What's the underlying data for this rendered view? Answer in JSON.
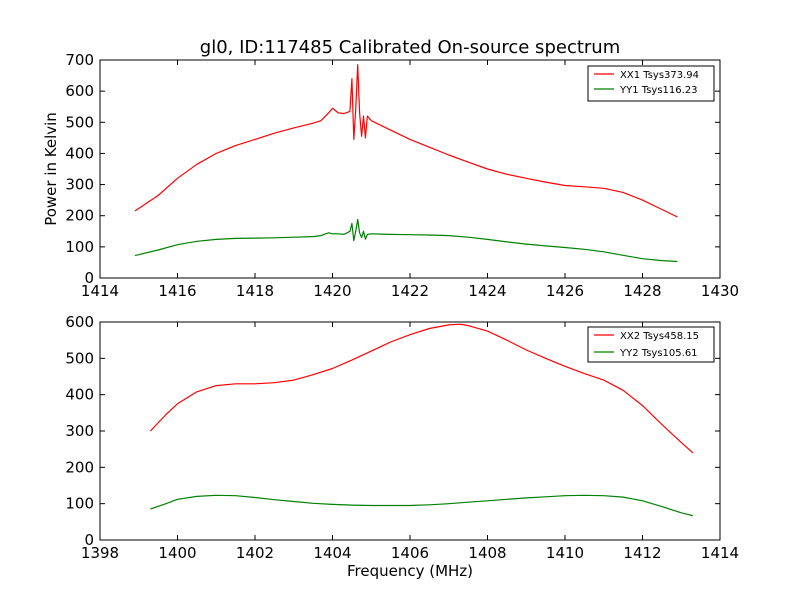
{
  "title": "gl0, ID:117485 Calibrated On-source spectrum",
  "colors": {
    "xx": "#ff0000",
    "yy": "#008000"
  },
  "chart_data": [
    {
      "type": "line",
      "xlabel": "",
      "ylabel": "Power in Kelvin",
      "xlim": [
        1414,
        1430
      ],
      "ylim": [
        0,
        700
      ],
      "xticks": [
        "1414",
        "1416",
        "1418",
        "1420",
        "1422",
        "1424",
        "1426",
        "1428",
        "1430"
      ],
      "yticks": [
        "0",
        "100",
        "200",
        "300",
        "400",
        "500",
        "600",
        "700"
      ],
      "legend_position": "top-right",
      "series": [
        {
          "name": "XX1 Tsys373.94",
          "color": "#ff0000",
          "x": [
            1414.9,
            1415.5,
            1416.0,
            1416.5,
            1417.0,
            1417.5,
            1418.0,
            1418.5,
            1419.0,
            1419.5,
            1419.7,
            1419.9,
            1420.0,
            1420.15,
            1420.3,
            1420.45,
            1420.5,
            1420.55,
            1420.6,
            1420.65,
            1420.7,
            1420.75,
            1420.8,
            1420.85,
            1420.9,
            1421.0,
            1421.5,
            1422.0,
            1422.5,
            1423.0,
            1423.5,
            1424.0,
            1424.5,
            1425.0,
            1425.5,
            1426.0,
            1426.5,
            1427.0,
            1427.5,
            1428.0,
            1428.5,
            1428.9
          ],
          "y": [
            215,
            265,
            320,
            365,
            400,
            425,
            445,
            465,
            482,
            497,
            505,
            530,
            545,
            530,
            528,
            535,
            640,
            445,
            540,
            685,
            530,
            455,
            520,
            450,
            520,
            505,
            475,
            445,
            420,
            395,
            372,
            350,
            333,
            320,
            308,
            297,
            293,
            288,
            275,
            250,
            220,
            196
          ]
        },
        {
          "name": "YY1 Tsys116.23",
          "color": "#008000",
          "x": [
            1414.9,
            1415.5,
            1416.0,
            1416.5,
            1417.0,
            1417.5,
            1418.0,
            1418.5,
            1419.0,
            1419.5,
            1419.7,
            1419.9,
            1420.0,
            1420.15,
            1420.3,
            1420.45,
            1420.5,
            1420.55,
            1420.6,
            1420.65,
            1420.7,
            1420.75,
            1420.8,
            1420.85,
            1420.9,
            1421.0,
            1421.5,
            1422.0,
            1422.5,
            1423.0,
            1423.5,
            1424.0,
            1424.5,
            1425.0,
            1425.5,
            1426.0,
            1426.5,
            1427.0,
            1427.5,
            1428.0,
            1428.5,
            1428.9
          ],
          "y": [
            72,
            90,
            107,
            118,
            124,
            127,
            128,
            129,
            131,
            133,
            136,
            145,
            142,
            142,
            140,
            150,
            175,
            120,
            150,
            188,
            145,
            130,
            150,
            125,
            140,
            142,
            140,
            139,
            138,
            136,
            131,
            124,
            116,
            109,
            103,
            98,
            92,
            84,
            73,
            62,
            56,
            53
          ]
        }
      ]
    },
    {
      "type": "line",
      "xlabel": "Frequency (MHz)",
      "ylabel": "",
      "xlim": [
        1398,
        1414
      ],
      "ylim": [
        0,
        600
      ],
      "xticks": [
        "1398",
        "1400",
        "1402",
        "1404",
        "1406",
        "1408",
        "1410",
        "1412",
        "1414"
      ],
      "yticks": [
        "0",
        "100",
        "200",
        "300",
        "400",
        "500",
        "600"
      ],
      "legend_position": "top-right",
      "series": [
        {
          "name": "XX2 Tsys458.15",
          "color": "#ff0000",
          "x": [
            1399.3,
            1399.7,
            1400.0,
            1400.5,
            1401.0,
            1401.5,
            1402.0,
            1402.5,
            1403.0,
            1403.5,
            1404.0,
            1404.5,
            1405.0,
            1405.5,
            1406.0,
            1406.5,
            1407.0,
            1407.3,
            1407.5,
            1408.0,
            1408.5,
            1409.0,
            1409.5,
            1410.0,
            1410.5,
            1411.0,
            1411.5,
            1412.0,
            1412.5,
            1413.0,
            1413.3
          ],
          "y": [
            300,
            345,
            375,
            408,
            425,
            430,
            430,
            433,
            440,
            455,
            472,
            495,
            520,
            545,
            565,
            582,
            592,
            594,
            590,
            575,
            550,
            523,
            500,
            478,
            458,
            440,
            412,
            370,
            318,
            268,
            240
          ]
        },
        {
          "name": "YY2 Tsys105.61",
          "color": "#008000",
          "x": [
            1399.3,
            1399.7,
            1400.0,
            1400.5,
            1401.0,
            1401.5,
            1402.0,
            1402.5,
            1403.0,
            1403.5,
            1404.0,
            1404.5,
            1405.0,
            1405.5,
            1406.0,
            1406.5,
            1407.0,
            1407.5,
            1408.0,
            1408.5,
            1409.0,
            1409.5,
            1410.0,
            1410.5,
            1411.0,
            1411.5,
            1412.0,
            1412.5,
            1413.0,
            1413.3
          ],
          "y": [
            85,
            100,
            112,
            120,
            123,
            122,
            117,
            111,
            106,
            101,
            98,
            96,
            95,
            95,
            95,
            97,
            100,
            104,
            108,
            112,
            116,
            119,
            122,
            123,
            122,
            118,
            108,
            92,
            75,
            67
          ]
        }
      ]
    }
  ]
}
